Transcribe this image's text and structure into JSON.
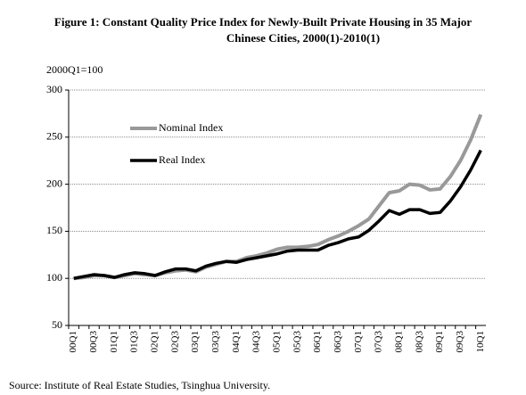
{
  "chart_data": {
    "type": "line",
    "title": [
      "Figure 1:   Constant Quality Price Index for Newly-Built Private Housing in 35 Major",
      "Chinese Cities, 2000(1)-2010(1)"
    ],
    "y_label": "2000Q1=100",
    "source": "Source: Institute of Real Estate Studies, Tsinghua University.",
    "categories": [
      "00Q1",
      null,
      "00Q3",
      null,
      "01Q1",
      null,
      "01Q3",
      null,
      "02Q1",
      null,
      "02Q3",
      null,
      "03Q1",
      null,
      "03Q3",
      null,
      "04Q1",
      null,
      "04Q3",
      null,
      "05Q1",
      null,
      "05Q3",
      null,
      "06Q1",
      null,
      "06Q3",
      null,
      "07Q1",
      null,
      "07Q3",
      null,
      "08Q1",
      null,
      "08Q3",
      null,
      "09Q1",
      null,
      "09Q3",
      null,
      "10Q1"
    ],
    "series": [
      {
        "name": "Nominal Index",
        "color": "#999999",
        "values": [
          100,
          101,
          103,
          103,
          101,
          103,
          105,
          104,
          103,
          106,
          108,
          109,
          107,
          112,
          115,
          118,
          118,
          122,
          124,
          127,
          131,
          133,
          133,
          134,
          136,
          141,
          145,
          150,
          156,
          163,
          177,
          191,
          193,
          200,
          199,
          194,
          195,
          208,
          225,
          247,
          274
        ]
      },
      {
        "name": "Real Index",
        "color": "#000000",
        "values": [
          100,
          102,
          104,
          103,
          101,
          104,
          106,
          105,
          103,
          107,
          110,
          110,
          108,
          113,
          116,
          118,
          117,
          120,
          122,
          124,
          126,
          129,
          130,
          130,
          130,
          135,
          138,
          142,
          144,
          151,
          161,
          172,
          168,
          173,
          173,
          169,
          170,
          182,
          197,
          215,
          236
        ]
      }
    ],
    "ylim": [
      50,
      300
    ],
    "yticks": [
      50,
      100,
      150,
      200,
      250,
      300
    ],
    "grid": true,
    "legend": "upper left"
  }
}
